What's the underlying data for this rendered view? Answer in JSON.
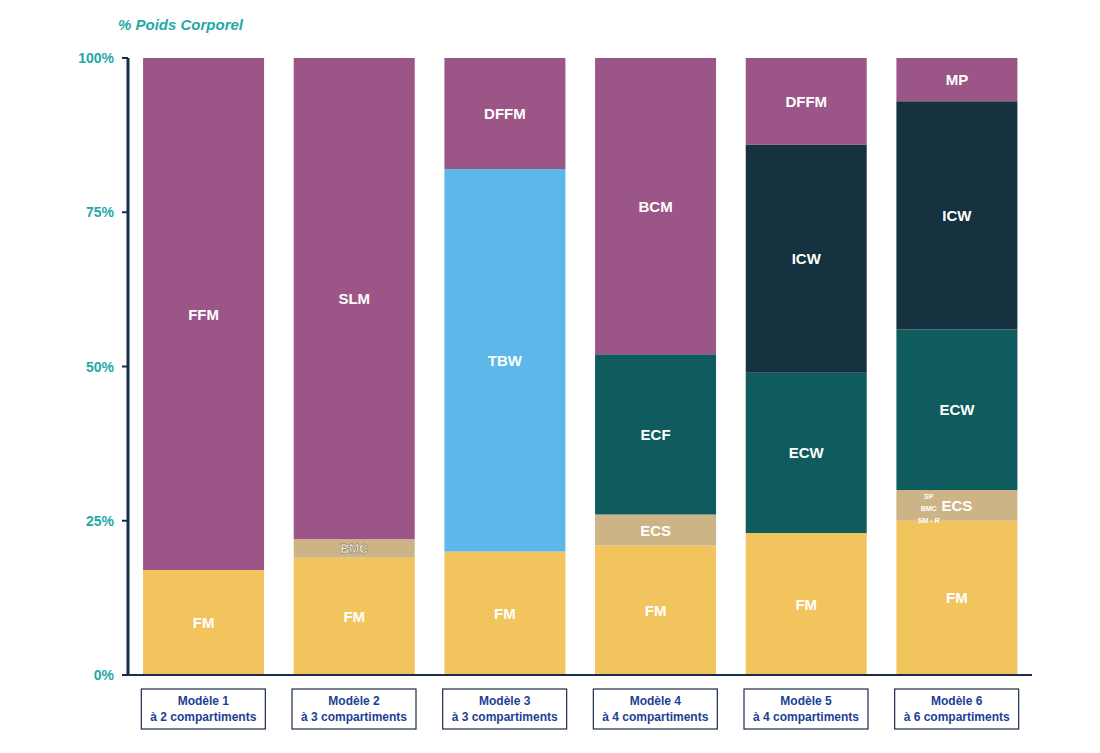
{
  "chart_data": {
    "type": "bar",
    "title": "% Poids Corporel",
    "stacked": true,
    "grid": false,
    "categories": [
      "Modèle 1 à 2 compartiments",
      "Modèle 2 à 3 compartiments",
      "Modèle 3 à 3 compartiments",
      "Modèle 4 à 4 compartiments",
      "Modèle 5 à 4 compartiments",
      "Modèle 6 à 6 compartiments"
    ],
    "series": [
      {
        "name": "FM",
        "color": "#f2c45e",
        "values": [
          17,
          19,
          20,
          21,
          23,
          25
        ]
      },
      {
        "name": "BMC",
        "color": "#cdb487",
        "values": [
          null,
          3,
          null,
          null,
          null,
          null
        ]
      },
      {
        "name": "ECS",
        "color": "#cdb487",
        "values": [
          null,
          null,
          null,
          5,
          null,
          5
        ]
      },
      {
        "name": "ECF",
        "color": "#0f5b5e",
        "values": [
          null,
          null,
          null,
          26,
          null,
          null
        ]
      },
      {
        "name": "ECW",
        "color": "#0f5b5e",
        "values": [
          null,
          null,
          null,
          null,
          26,
          26
        ]
      },
      {
        "name": "TBW",
        "color": "#5bb8e8",
        "values": [
          null,
          null,
          62,
          null,
          null,
          null
        ]
      },
      {
        "name": "ICW",
        "color": "#16313f",
        "values": [
          null,
          null,
          null,
          null,
          37,
          37
        ]
      },
      {
        "name": "FFM",
        "color": "#9c5587",
        "values": [
          83,
          null,
          null,
          null,
          null,
          null
        ]
      },
      {
        "name": "SLM",
        "color": "#9c5587",
        "values": [
          null,
          78,
          null,
          null,
          null,
          null
        ]
      },
      {
        "name": "DFFM",
        "color": "#9c5587",
        "values": [
          null,
          null,
          18,
          null,
          14,
          null
        ]
      },
      {
        "name": "BCM",
        "color": "#9c5587",
        "values": [
          null,
          null,
          null,
          48,
          null,
          null
        ]
      },
      {
        "name": "MP",
        "color": "#9c5587",
        "values": [
          null,
          null,
          null,
          null,
          null,
          7
        ]
      }
    ],
    "ylim": [
      0,
      100
    ],
    "yticks": [
      {
        "value": 0,
        "label": "0%"
      },
      {
        "value": 25,
        "label": "25%"
      },
      {
        "value": 50,
        "label": "50%"
      },
      {
        "value": 75,
        "label": "75%"
      },
      {
        "value": 100,
        "label": "100%"
      }
    ],
    "annotations": [
      {
        "text": "SP",
        "x": 5,
        "y": 29
      },
      {
        "text": "BMC",
        "x": 5,
        "y": 27
      },
      {
        "text": "SM - R",
        "x": 5,
        "y": 25
      }
    ]
  }
}
